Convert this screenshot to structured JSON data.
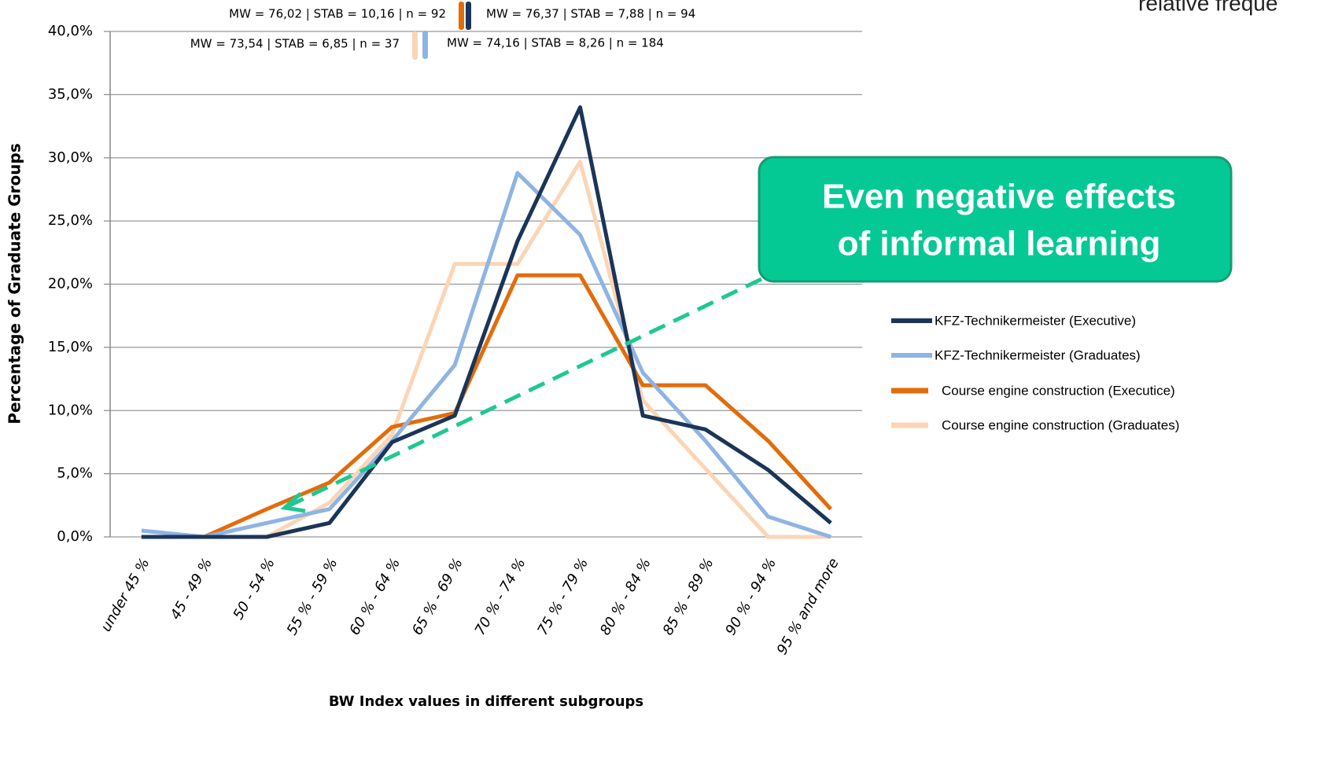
{
  "chart_data": {
    "type": "line",
    "corner_text": "relative freque",
    "x_label": "BW Index  values in different subgroups",
    "y_label": "Percentage of Graduate Groups",
    "categories": [
      "under 45 %",
      "45 - 49 %",
      "50 - 54 %",
      "55 % - 59 %",
      "60 % - 64 %",
      "65 % - 69 %",
      "70 % - 74 %",
      "75 % - 79 %",
      "80 % - 84 %",
      "85 % - 89 %",
      "90 % - 94 %",
      "95 % and more"
    ],
    "series": [
      {
        "name": "KFZ-Technikermeister (Executive)",
        "color": "#1b3558",
        "values": [
          0,
          0,
          0,
          1.1,
          7.5,
          9.6,
          23.4,
          34.0,
          9.6,
          8.5,
          5.3,
          1.1
        ]
      },
      {
        "name": "KFZ-Technikermeister (Graduates)",
        "color": "#8eb4e3",
        "values": [
          0.5,
          0,
          1.1,
          2.2,
          7.6,
          13.6,
          28.8,
          23.9,
          13.0,
          7.6,
          1.6,
          0
        ]
      },
      {
        "name": "Course engine construction (Executice)",
        "color": "#e36c0a",
        "values": [
          0,
          0,
          2.2,
          4.3,
          8.7,
          9.8,
          20.7,
          20.7,
          12.0,
          12.0,
          7.6,
          2.2
        ]
      },
      {
        "name": "Course engine construction (Graduates)",
        "color": "#fbd5b5",
        "values": [
          0,
          0,
          0,
          2.7,
          8.1,
          21.6,
          21.6,
          29.7,
          10.8,
          5.4,
          0,
          0
        ]
      }
    ],
    "ylim": [
      0,
      40
    ],
    "yticks": [
      {
        "value": 0,
        "label": "0,0%"
      },
      {
        "value": 5,
        "label": "5,0%"
      },
      {
        "value": 10,
        "label": "10,0%"
      },
      {
        "value": 15,
        "label": "15,0%"
      },
      {
        "value": 20,
        "label": "20,0%"
      },
      {
        "value": 25,
        "label": "25,0%"
      },
      {
        "value": 30,
        "label": "30,0%"
      },
      {
        "value": 35,
        "label": "35,0%"
      },
      {
        "value": 40,
        "label": "40,0%"
      }
    ],
    "grid": true,
    "stats": [
      {
        "text": "MW = 76,02 | STAB = 10,16 | n = 92",
        "color": "#e36c0a"
      },
      {
        "text": "MW = 76,37 | STAB = 7,88 | n = 94",
        "color": "#1b3558"
      },
      {
        "text": "MW = 73,54 | STAB = 6,85 | n = 37",
        "color": "#fbd5b5"
      },
      {
        "text": "MW = 74,16 | STAB = 8,26 | n = 184",
        "color": "#8eb4e3"
      }
    ],
    "callout": [
      "Even negative effects",
      "of informal learning"
    ]
  }
}
